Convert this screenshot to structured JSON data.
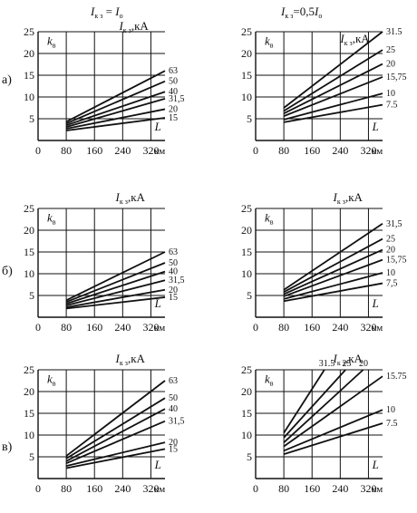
{
  "headers": {
    "left": {
      "sym": "I",
      "sub": "к з",
      "rest": " = ",
      "sym2": "I",
      "sub2": "о"
    },
    "right": {
      "sym": "I",
      "sub": "к з",
      "rest": "=0,5",
      "sym2": "I",
      "sub2": "о"
    }
  },
  "row_labels": [
    "а)",
    "б)",
    "в)"
  ],
  "units": {
    "current": ",кА",
    "length": "км"
  },
  "axis_symbols": {
    "k": "k",
    "k_sub": "в",
    "L": "L",
    "I": "I",
    "I_sub": "к з"
  },
  "colors": {
    "line": "#111111",
    "grid": "#111111",
    "background": "#ffffff"
  },
  "chart_data": [
    {
      "type": "line",
      "row": "а)",
      "column": "I_kz = I_o",
      "x": [
        80,
        360
      ],
      "xlim": [
        0,
        360
      ],
      "ylim": [
        0,
        25
      ],
      "xticks": [
        0,
        80,
        160,
        240,
        320
      ],
      "yticks": [
        5,
        10,
        15,
        20,
        25
      ],
      "xlabel": "L",
      "ylabel": "kв",
      "legend_title": "Iк з,кА",
      "series": [
        {
          "name": "63",
          "values": [
            4.3,
            16
          ]
        },
        {
          "name": "50",
          "values": [
            3.9,
            13.6
          ]
        },
        {
          "name": "40",
          "values": [
            3.5,
            11.2
          ]
        },
        {
          "name": "31,5",
          "values": [
            3.1,
            9.6
          ]
        },
        {
          "name": "20",
          "values": [
            2.7,
            7.2
          ]
        },
        {
          "name": "15",
          "values": [
            2.3,
            5.2
          ]
        }
      ]
    },
    {
      "type": "line",
      "row": "а)",
      "column": "I_kz = 0,5 I_o",
      "x": [
        80,
        360
      ],
      "xlim": [
        0,
        360
      ],
      "ylim": [
        0,
        25
      ],
      "xticks": [
        0,
        80,
        160,
        240,
        320
      ],
      "yticks": [
        5,
        10,
        15,
        20,
        25
      ],
      "xlabel": "L",
      "ylabel": "kв",
      "legend_title": "Iк з,кА",
      "series": [
        {
          "name": "31.5",
          "values": [
            7.5,
            25
          ]
        },
        {
          "name": "25",
          "values": [
            6.8,
            20.8
          ]
        },
        {
          "name": "20",
          "values": [
            6.2,
            17.6
          ]
        },
        {
          "name": "15,75",
          "values": [
            5.6,
            14.6
          ]
        },
        {
          "name": "10",
          "values": [
            4.8,
            10.8
          ]
        },
        {
          "name": "7.5",
          "values": [
            4.2,
            8.2
          ]
        }
      ]
    },
    {
      "type": "line",
      "row": "б)",
      "column": "I_kz = I_o",
      "x": [
        80,
        360
      ],
      "xlim": [
        0,
        360
      ],
      "ylim": [
        0,
        25
      ],
      "xticks": [
        0,
        80,
        160,
        240,
        320
      ],
      "yticks": [
        5,
        10,
        15,
        20,
        25
      ],
      "xlabel": "L",
      "ylabel": "kв",
      "legend_title": "Iк з,кА",
      "series": [
        {
          "name": "63",
          "values": [
            3.9,
            15
          ]
        },
        {
          "name": "50",
          "values": [
            3.5,
            12.5
          ]
        },
        {
          "name": "40",
          "values": [
            3.1,
            10.5
          ]
        },
        {
          "name": "31,5",
          "values": [
            2.7,
            8.5
          ]
        },
        {
          "name": "20",
          "values": [
            2.3,
            6.3
          ]
        },
        {
          "name": "15",
          "values": [
            2.0,
            4.6
          ]
        }
      ]
    },
    {
      "type": "line",
      "row": "б)",
      "column": "I_kz = 0,5 I_o",
      "x": [
        80,
        360
      ],
      "xlim": [
        0,
        360
      ],
      "ylim": [
        0,
        25
      ],
      "xticks": [
        0,
        80,
        160,
        240,
        320
      ],
      "yticks": [
        5,
        10,
        15,
        20,
        25
      ],
      "xlabel": "L",
      "ylabel": "kв",
      "legend_title": "Iк з,кА",
      "series": [
        {
          "name": "31,5",
          "values": [
            6.3,
            21.5
          ]
        },
        {
          "name": "25",
          "values": [
            5.8,
            18
          ]
        },
        {
          "name": "20",
          "values": [
            5.3,
            15.5
          ]
        },
        {
          "name": "15,75",
          "values": [
            4.8,
            13.2
          ]
        },
        {
          "name": "10",
          "values": [
            4.2,
            10.2
          ]
        },
        {
          "name": "7,5",
          "values": [
            3.7,
            7.8
          ]
        }
      ]
    },
    {
      "type": "line",
      "row": "в)",
      "column": "I_kz = I_o",
      "x": [
        80,
        360
      ],
      "xlim": [
        0,
        360
      ],
      "ylim": [
        0,
        25
      ],
      "xticks": [
        0,
        80,
        160,
        240,
        320
      ],
      "yticks": [
        5,
        10,
        15,
        20,
        25
      ],
      "xlabel": "L",
      "ylabel": "kв",
      "legend_title": "Iк з,кА",
      "series": [
        {
          "name": "63",
          "values": [
            5.2,
            22.5
          ]
        },
        {
          "name": "50",
          "values": [
            4.6,
            18.5
          ]
        },
        {
          "name": "40",
          "values": [
            4.0,
            16
          ]
        },
        {
          "name": "31,5",
          "values": [
            3.5,
            13.2
          ]
        },
        {
          "name": "20",
          "values": [
            2.9,
            8.3
          ]
        },
        {
          "name": "15",
          "values": [
            2.4,
            6.8
          ]
        }
      ]
    },
    {
      "type": "line",
      "row": "в)",
      "column": "I_kz = 0,5 I_o",
      "x": [
        80,
        360
      ],
      "xlim": [
        0,
        360
      ],
      "ylim": [
        0,
        25
      ],
      "xticks": [
        0,
        80,
        160,
        240,
        320
      ],
      "yticks": [
        5,
        10,
        15,
        20,
        25
      ],
      "xlabel": "L",
      "ylabel": "kв",
      "legend_title": "Iк з,кА",
      "series": [
        {
          "name": "31.5",
          "values": [
            10.5,
            25
          ],
          "x_end": 195
        },
        {
          "name": "25",
          "values": [
            9.4,
            25
          ],
          "x_end": 255
        },
        {
          "name": "20",
          "values": [
            8.3,
            25
          ],
          "x_end": 305
        },
        {
          "name": "15.75",
          "values": [
            7.4,
            23.5
          ]
        },
        {
          "name": "10",
          "values": [
            6.4,
            15.8
          ]
        },
        {
          "name": "7.5",
          "values": [
            5.6,
            12.7
          ]
        }
      ]
    }
  ]
}
